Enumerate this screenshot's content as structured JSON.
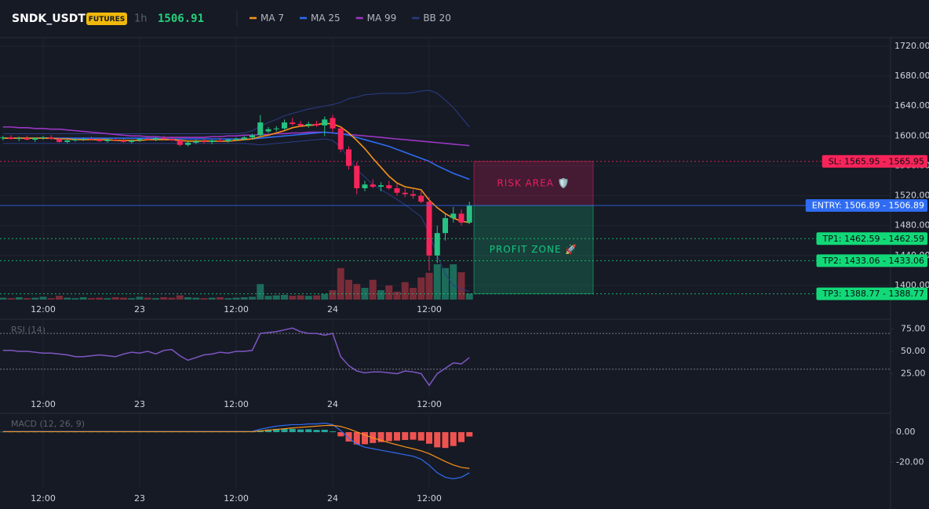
{
  "chart_data": [
    {
      "type": "candlestick",
      "title": "SNDK_USDT",
      "badge": "FUTURES",
      "interval": "1h",
      "last_price": 1506.91,
      "categories": [
        null,
        null,
        null,
        null,
        null,
        "12:00",
        null,
        null,
        null,
        null,
        null,
        null,
        null,
        null,
        null,
        null,
        null,
        "23",
        null,
        null,
        null,
        null,
        null,
        null,
        null,
        null,
        null,
        null,
        null,
        "12:00",
        null,
        null,
        null,
        null,
        null,
        null,
        null,
        null,
        null,
        null,
        null,
        "24",
        null,
        null,
        null,
        null,
        null,
        null,
        null,
        null,
        null,
        null,
        null,
        "12:00",
        null,
        null,
        null,
        null,
        null
      ],
      "open": [
        1597,
        1598,
        1596,
        1597,
        1595,
        1597,
        1598,
        1596,
        1592,
        1594,
        1595,
        1596,
        1595,
        1593,
        1595,
        1594,
        1592,
        1594,
        1596,
        1595,
        1597,
        1596,
        1594,
        1588,
        1591,
        1593,
        1592,
        1594,
        1593,
        1595,
        1596,
        1598,
        1601,
        1606,
        1609,
        1610,
        1618,
        1616,
        1614,
        1616,
        1614,
        1624,
        1610,
        1582,
        1560,
        1530,
        1535,
        1532,
        1534,
        1530,
        1524,
        1522,
        1520,
        1512,
        1440,
        1470,
        1490,
        1496,
        1484
      ],
      "high": [
        1600,
        1601,
        1599,
        1600,
        1598,
        1600,
        1601,
        1598,
        1596,
        1597,
        1598,
        1599,
        1598,
        1596,
        1598,
        1597,
        1595,
        1597,
        1599,
        1598,
        1600,
        1598,
        1596,
        1593,
        1595,
        1596,
        1595,
        1597,
        1596,
        1598,
        1600,
        1603,
        1628,
        1612,
        1613,
        1622,
        1624,
        1620,
        1619,
        1620,
        1626,
        1628,
        1612,
        1586,
        1565,
        1540,
        1542,
        1538,
        1540,
        1536,
        1530,
        1528,
        1526,
        1518,
        1480,
        1495,
        1505,
        1502,
        1512
      ],
      "low": [
        1594,
        1595,
        1593,
        1594,
        1592,
        1595,
        1595,
        1591,
        1590,
        1592,
        1593,
        1594,
        1592,
        1591,
        1593,
        1591,
        1590,
        1592,
        1594,
        1593,
        1595,
        1593,
        1586,
        1586,
        1589,
        1590,
        1589,
        1592,
        1591,
        1593,
        1594,
        1596,
        1599,
        1604,
        1606,
        1608,
        1614,
        1612,
        1611,
        1612,
        1600,
        1605,
        1578,
        1555,
        1522,
        1526,
        1530,
        1526,
        1528,
        1520,
        1518,
        1516,
        1510,
        1420,
        1430,
        1460,
        1484,
        1480,
        1482
      ],
      "close": [
        1598,
        1596,
        1597,
        1595,
        1597,
        1598,
        1596,
        1592,
        1594,
        1595,
        1596,
        1595,
        1593,
        1595,
        1594,
        1592,
        1594,
        1596,
        1595,
        1597,
        1596,
        1594,
        1588,
        1591,
        1593,
        1592,
        1594,
        1593,
        1595,
        1596,
        1598,
        1601,
        1618,
        1609,
        1610,
        1618,
        1616,
        1614,
        1616,
        1614,
        1622,
        1610,
        1582,
        1560,
        1530,
        1535,
        1532,
        1534,
        1530,
        1524,
        1522,
        1520,
        1512,
        1440,
        1470,
        1490,
        1496,
        1484,
        1507
      ],
      "up_color": "#26c281",
      "down_color": "#f7245a",
      "series": [
        {
          "name": "MA 7",
          "color": "#f7931a",
          "values": [
            1597,
            1597,
            1597,
            1597,
            1597,
            1597,
            1597,
            1596,
            1596,
            1595,
            1595,
            1595,
            1595,
            1595,
            1594,
            1594,
            1594,
            1594,
            1595,
            1595,
            1595,
            1595,
            1594,
            1593,
            1593,
            1593,
            1593,
            1593,
            1593,
            1594,
            1595,
            1596,
            1599,
            1601,
            1604,
            1607,
            1611,
            1613,
            1614,
            1615,
            1617,
            1616,
            1612,
            1604,
            1594,
            1583,
            1570,
            1558,
            1546,
            1537,
            1532,
            1530,
            1528,
            1514,
            1504,
            1496,
            1490,
            1486,
            1484
          ]
        },
        {
          "name": "MA 25",
          "color": "#2f6cf2",
          "values": [
            1597,
            1597,
            1597,
            1597,
            1597,
            1597,
            1597,
            1597,
            1597,
            1597,
            1597,
            1597,
            1597,
            1597,
            1597,
            1597,
            1597,
            1597,
            1597,
            1597,
            1596,
            1596,
            1596,
            1596,
            1596,
            1596,
            1596,
            1596,
            1596,
            1596,
            1596,
            1596,
            1597,
            1598,
            1599,
            1600,
            1601,
            1602,
            1603,
            1604,
            1605,
            1604,
            1603,
            1601,
            1598,
            1595,
            1592,
            1589,
            1586,
            1582,
            1578,
            1574,
            1570,
            1566,
            1560,
            1555,
            1550,
            1546,
            1542
          ]
        },
        {
          "name": "MA 99",
          "color": "#9c36c4",
          "values": [
            1612,
            1612,
            1611,
            1611,
            1610,
            1610,
            1609,
            1609,
            1608,
            1607,
            1606,
            1605,
            1604,
            1603,
            1602,
            1601,
            1600,
            1600,
            1599,
            1599,
            1598,
            1598,
            1598,
            1598,
            1598,
            1598,
            1599,
            1599,
            1600,
            1600,
            1601,
            1601,
            1602,
            1602,
            1603,
            1603,
            1604,
            1604,
            1605,
            1605,
            1605,
            1604,
            1603,
            1602,
            1601,
            1600,
            1599,
            1598,
            1597,
            1596,
            1595,
            1594,
            1593,
            1592,
            1591,
            1590,
            1589,
            1588,
            1587
          ]
        }
      ],
      "bollinger": {
        "name": "BB 20",
        "color": "#2b3d85",
        "upper": [
          1603,
          1603,
          1603,
          1603,
          1603,
          1603,
          1603,
          1603,
          1603,
          1603,
          1603,
          1603,
          1603,
          1603,
          1603,
          1603,
          1603,
          1603,
          1603,
          1603,
          1603,
          1603,
          1603,
          1603,
          1603,
          1603,
          1603,
          1603,
          1603,
          1603,
          1604,
          1607,
          1613,
          1618,
          1622,
          1627,
          1630,
          1633,
          1636,
          1638,
          1640,
          1642,
          1645,
          1650,
          1652,
          1655,
          1656,
          1657,
          1657,
          1657,
          1657,
          1658,
          1660,
          1661,
          1657,
          1648,
          1638,
          1625,
          1612
        ],
        "lower": [
          1590,
          1590,
          1590,
          1590,
          1590,
          1590,
          1590,
          1590,
          1590,
          1590,
          1590,
          1590,
          1590,
          1590,
          1590,
          1590,
          1590,
          1590,
          1590,
          1590,
          1590,
          1590,
          1590,
          1590,
          1590,
          1590,
          1590,
          1590,
          1590,
          1590,
          1590,
          1589,
          1588,
          1589,
          1590,
          1591,
          1592,
          1593,
          1594,
          1595,
          1596,
          1594,
          1585,
          1570,
          1555,
          1545,
          1535,
          1528,
          1522,
          1515,
          1508,
          1500,
          1492,
          1470,
          1440,
          1415,
          1400,
          1395,
          1392
        ]
      },
      "volume": {
        "values": [
          4,
          3,
          5,
          3,
          4,
          6,
          3,
          8,
          4,
          3,
          5,
          3,
          4,
          3,
          5,
          4,
          3,
          6,
          4,
          3,
          5,
          4,
          9,
          5,
          4,
          3,
          4,
          5,
          3,
          4,
          5,
          6,
          33,
          8,
          9,
          10,
          8,
          9,
          8,
          9,
          12,
          20,
          67,
          42,
          33,
          25,
          42,
          20,
          30,
          17,
          37,
          25,
          47,
          57,
          75,
          67,
          75,
          58,
          13
        ],
        "ylim": [
          0,
          100
        ],
        "up_color": "#1d6b5a",
        "down_color": "#7a2b38"
      },
      "ylim": [
        1381,
        1731.5
      ],
      "yticks": [
        {
          "value": 1400,
          "label": "1400.00"
        },
        {
          "value": 1440,
          "label": "1440.00"
        },
        {
          "value": 1480,
          "label": "1480.00"
        },
        {
          "value": 1520,
          "label": "1520.00"
        },
        {
          "value": 1560,
          "label": "1560.00"
        },
        {
          "value": 1600,
          "label": "1600.00"
        },
        {
          "value": 1640,
          "label": "1640.00"
        },
        {
          "value": 1680,
          "label": "1680.00"
        },
        {
          "value": 1720,
          "label": "1720.00"
        }
      ],
      "grid": true,
      "levels": [
        {
          "label": "SL: 1565.95 - 1565.95",
          "value": 1565.95,
          "color": "#f7245a",
          "dash": true
        },
        {
          "label": "ENTRY: 1506.89 - 1506.89",
          "value": 1506.89,
          "color": "#2f6cf2",
          "dash": false
        },
        {
          "label": "TP1: 1462.59 - 1462.59",
          "value": 1462.59,
          "color": "#12d978",
          "dash": true
        },
        {
          "label": "TP2: 1433.06 - 1433.06",
          "value": 1433.06,
          "color": "#12d978",
          "dash": true
        },
        {
          "label": "TP3: 1388.77 - 1388.77",
          "value": 1388.77,
          "color": "#12d978",
          "dash": true
        }
      ],
      "zones": [
        {
          "label": "RISK AREA 🛡️",
          "from": 1506.89,
          "to": 1565.95,
          "color": "#e91e63"
        },
        {
          "label": "PROFIT ZONE 🚀",
          "from": 1388.77,
          "to": 1506.89,
          "color": "#16c784"
        }
      ]
    },
    {
      "type": "line",
      "title": "RSI (14)",
      "color": "#7e57c2",
      "values": [
        51,
        51,
        50,
        50,
        49,
        48,
        48,
        47,
        46,
        44,
        44,
        45,
        46,
        45,
        44,
        47,
        49,
        48,
        50,
        47,
        51,
        52,
        45,
        40,
        43,
        46,
        47,
        49,
        48,
        50,
        50,
        51,
        70,
        71,
        72,
        74,
        76,
        72,
        70,
        70,
        68,
        70,
        44,
        34,
        28,
        26,
        27,
        27,
        26,
        25,
        28,
        27,
        25,
        12,
        25,
        31,
        37,
        36,
        43
      ],
      "ylim": [
        0,
        85
      ],
      "yticks": [
        {
          "value": 25,
          "label": "25.00"
        },
        {
          "value": 50,
          "label": "50.00"
        },
        {
          "value": 75,
          "label": "75.00"
        }
      ],
      "guides": [
        70,
        30
      ]
    },
    {
      "type": "macd",
      "title": "MACD (12, 26, 9)",
      "series": [
        {
          "name": "MACD",
          "color": "#2f6cf2",
          "values": [
            0.5,
            0.5,
            0.5,
            0.5,
            0.5,
            0.5,
            0.5,
            0.5,
            0.5,
            0.5,
            0.5,
            0.5,
            0.5,
            0.5,
            0.5,
            0.5,
            0.5,
            0.5,
            0.5,
            0.5,
            0.5,
            0.5,
            0.5,
            0.5,
            0.5,
            0.5,
            0.5,
            0.5,
            0.5,
            0.5,
            0.5,
            0.5,
            2,
            3,
            4,
            4.5,
            5,
            5,
            5.5,
            5.5,
            6,
            5,
            1,
            -4,
            -8,
            -10,
            -11,
            -12,
            -13,
            -14,
            -15,
            -16,
            -18,
            -22,
            -27,
            -30,
            -31,
            -30,
            -27
          ]
        },
        {
          "name": "Signal",
          "color": "#f7931a",
          "values": [
            0.3,
            0.3,
            0.3,
            0.3,
            0.3,
            0.3,
            0.3,
            0.3,
            0.3,
            0.3,
            0.3,
            0.3,
            0.3,
            0.3,
            0.3,
            0.3,
            0.3,
            0.3,
            0.3,
            0.3,
            0.3,
            0.3,
            0.3,
            0.3,
            0.3,
            0.3,
            0.3,
            0.3,
            0.3,
            0.3,
            0.3,
            0.3,
            0.8,
            1.3,
            1.8,
            2.3,
            2.8,
            3.2,
            3.6,
            4,
            4.4,
            4.5,
            3.8,
            2.2,
            0.2,
            -2,
            -3.8,
            -5.4,
            -7,
            -8.4,
            -9.8,
            -11,
            -12.4,
            -14.3,
            -16.9,
            -19.5,
            -21.8,
            -23.4,
            -24.1
          ]
        }
      ],
      "histogram": {
        "up_color": "#26a69a",
        "down_color": "#ef5350",
        "values": [
          0.2,
          0.2,
          0.2,
          0.2,
          0.2,
          0.2,
          0.2,
          0.2,
          0.2,
          0.2,
          0.2,
          0.2,
          0.2,
          0.2,
          0.2,
          0.2,
          0.2,
          0.2,
          0.2,
          0.2,
          0.2,
          0.2,
          0.2,
          0.2,
          0.2,
          0.2,
          0.2,
          0.2,
          0.2,
          0.2,
          0.2,
          0.2,
          1.2,
          1.7,
          2.2,
          2.2,
          2.2,
          1.8,
          1.9,
          1.5,
          1.6,
          0.5,
          -2.8,
          -6.2,
          -8.2,
          -8,
          -7.2,
          -6.6,
          -6,
          -5.6,
          -5.2,
          -5,
          -5.6,
          -7.7,
          -10.1,
          -10.5,
          -9.2,
          -6.6,
          -2.9
        ]
      },
      "ylim": [
        -37,
        12
      ],
      "yticks": [
        {
          "value": -20,
          "label": "-20.00"
        },
        {
          "value": 0,
          "label": "0.00"
        }
      ]
    }
  ]
}
